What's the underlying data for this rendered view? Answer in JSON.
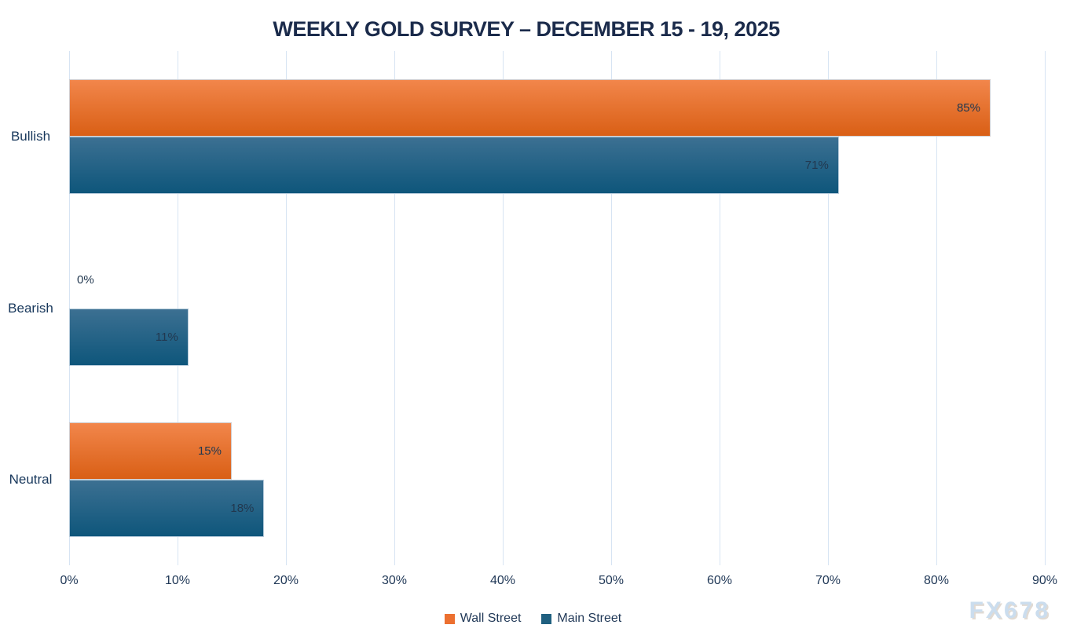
{
  "watermark": "FX678",
  "colors": {
    "title_text": "#1B2B4B",
    "axis_text": "#1F3756",
    "category_text": "#17375B",
    "data_label_text": "#22384F",
    "gridline": "#D7E4F3",
    "background": "#FFFFFF",
    "watermark_text": "#CBDDEE"
  },
  "chart_data": {
    "type": "bar",
    "orientation": "horizontal",
    "title": "WEEKLY GOLD SURVEY – DECEMBER 15 - 19, 2025",
    "categories": [
      "Bullish",
      "Bearish",
      "Neutral"
    ],
    "series": [
      {
        "name": "Wall Street",
        "values": [
          85,
          0,
          15
        ],
        "data_labels": [
          "85%",
          "0%",
          "15%"
        ],
        "color_top": "#F2864B",
        "color_bottom": "#D95F15",
        "legend_color": "#EC7030"
      },
      {
        "name": "Main Street",
        "values": [
          71,
          11,
          18
        ],
        "data_labels": [
          "71%",
          "11%",
          "18%"
        ],
        "color_top": "#3C7092",
        "color_bottom": "#0E567B",
        "legend_color": "#206080"
      }
    ],
    "x_axis": {
      "min": 0,
      "max": 90,
      "step": 10,
      "tick_labels": [
        "0%",
        "10%",
        "20%",
        "30%",
        "40%",
        "50%",
        "60%",
        "70%",
        "80%",
        "90%"
      ]
    },
    "ylabel": "",
    "xlabel": "",
    "grid": true,
    "legend_position": "bottom",
    "data_label_position": "inside-end"
  }
}
